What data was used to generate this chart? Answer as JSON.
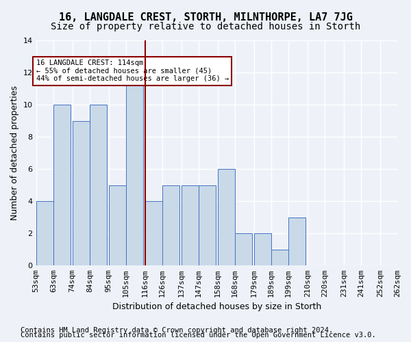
{
  "title": "16, LANGDALE CREST, STORTH, MILNTHORPE, LA7 7JG",
  "subtitle": "Size of property relative to detached houses in Storth",
  "xlabel": "Distribution of detached houses by size in Storth",
  "ylabel": "Number of detached properties",
  "bin_edges": [
    53,
    63,
    74,
    84,
    95,
    105,
    116,
    126,
    137,
    147,
    158,
    168,
    179,
    189,
    199,
    210,
    220,
    231,
    241,
    252,
    262
  ],
  "bin_labels": [
    "53sqm",
    "63sqm",
    "74sqm",
    "84sqm",
    "95sqm",
    "105sqm",
    "116sqm",
    "126sqm",
    "137sqm",
    "147sqm",
    "158sqm",
    "168sqm",
    "179sqm",
    "189sqm",
    "199sqm",
    "210sqm",
    "220sqm",
    "231sqm",
    "241sqm",
    "252sqm",
    "262sqm"
  ],
  "counts": [
    4,
    10,
    9,
    10,
    5,
    12,
    4,
    5,
    5,
    5,
    6,
    2,
    2,
    1,
    3,
    0,
    0,
    0,
    0,
    0
  ],
  "bar_color": "#c9d9e8",
  "bar_edge_color": "#4472c4",
  "property_value": 114,
  "vline_x": 116,
  "vline_color": "#8b0000",
  "annotation_text": "16 LANGDALE CREST: 114sqm\n← 55% of detached houses are smaller (45)\n44% of semi-detached houses are larger (36) →",
  "annotation_box_color": "#ffffff",
  "annotation_box_edge_color": "#8b0000",
  "ylim": [
    0,
    14
  ],
  "yticks": [
    0,
    2,
    4,
    6,
    8,
    10,
    12,
    14
  ],
  "footer_line1": "Contains HM Land Registry data © Crown copyright and database right 2024.",
  "footer_line2": "Contains public sector information licensed under the Open Government Licence v3.0.",
  "background_color": "#eef2f8",
  "plot_bg_color": "#eef2f8",
  "grid_color": "#ffffff",
  "title_fontsize": 11,
  "subtitle_fontsize": 10,
  "axis_label_fontsize": 9,
  "tick_fontsize": 8,
  "footer_fontsize": 7.5
}
